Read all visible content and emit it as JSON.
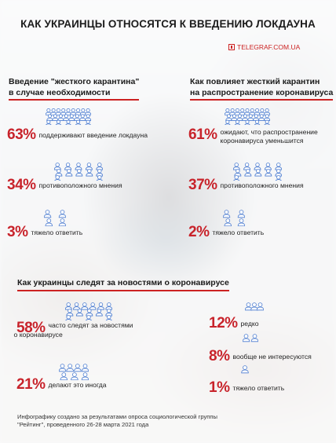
{
  "title": "КАК УКРАИНЦЫ ОТНОСЯТСЯ К ВВЕДЕНИЮ ЛОКДАУНА",
  "brand": "TELEGRAF.COM.UA",
  "colors": {
    "accent": "#c8232b",
    "icon": "#4a7bd0"
  },
  "left": {
    "heading": [
      "Введение \"жесткого карантина\"",
      "в случае необходимости"
    ],
    "stats": [
      {
        "pct": "63%",
        "text": [
          "поддерживают введение локдауна"
        ]
      },
      {
        "pct": "34%",
        "text": [
          "противоположного мнения"
        ]
      },
      {
        "pct": "3%",
        "text": [
          "тяжело ответить"
        ]
      }
    ]
  },
  "right": {
    "heading": [
      "Как повлияет жесткий карантин",
      "на распространение коронавируса"
    ],
    "stats": [
      {
        "pct": "61%",
        "text": [
          "ожидают, что распространение",
          "коронавируса уменьшится"
        ]
      },
      {
        "pct": "37%",
        "text": [
          "противоположного мнения"
        ]
      },
      {
        "pct": "2%",
        "text": [
          "тяжело ответить"
        ]
      }
    ]
  },
  "news": {
    "heading": "Как украинцы следят за новостями о коронавирусе",
    "stats": [
      {
        "pct": "58%",
        "text": [
          "часто следят за новостями",
          "о коронавирусе"
        ]
      },
      {
        "pct": "21%",
        "text": [
          "делают это иногда"
        ]
      },
      {
        "pct": "12%",
        "text": [
          "редко"
        ]
      },
      {
        "pct": "8%",
        "text": [
          "вообще не интересуются"
        ]
      },
      {
        "pct": "1%",
        "text": [
          "тяжело ответить"
        ]
      }
    ]
  },
  "footnote": [
    "Инфографику создано за результатами опроса социологической группы",
    "\"Рейтинг\", проведенного 26-28 марта 2021 года"
  ],
  "icons": {
    "crowd": "people-group-icon",
    "brand": "telegraf-logo-icon"
  }
}
